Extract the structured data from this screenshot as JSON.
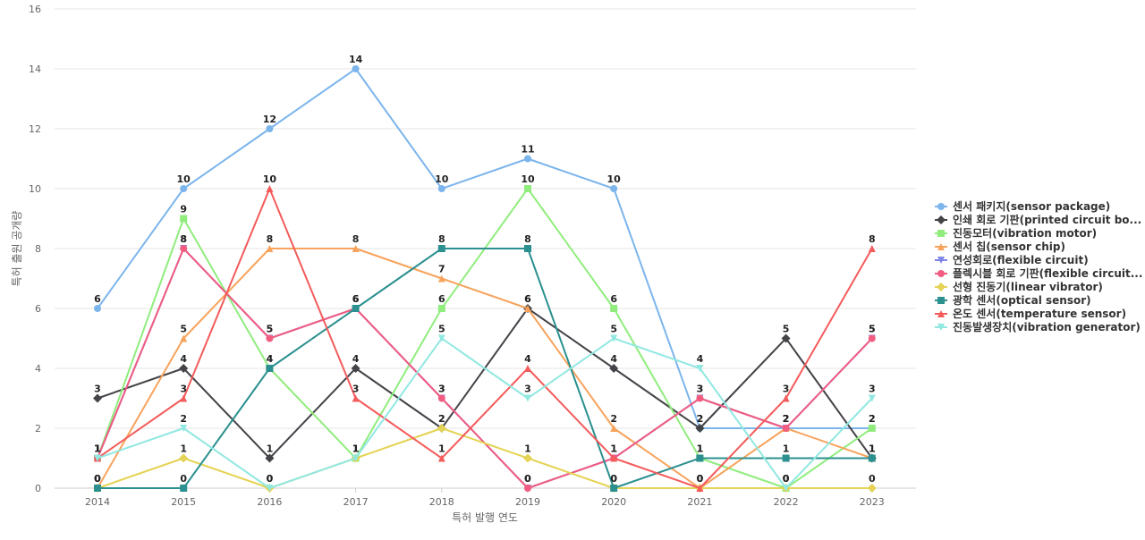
{
  "chart_data": {
    "type": "line",
    "title": "",
    "xlabel": "특허 발행 연도",
    "ylabel": "특허 출원 공개량",
    "ylim": [
      0,
      16
    ],
    "yticks": [
      0,
      2,
      4,
      6,
      8,
      10,
      12,
      14,
      16
    ],
    "grid": true,
    "legend_position": "right",
    "x": [
      2014,
      2015,
      2016,
      2017,
      2018,
      2019,
      2020,
      2021,
      2022,
      2023
    ],
    "series": [
      {
        "name": "센서 패키지(sensor package)",
        "color": "#7cb5ec",
        "marker": "circle",
        "values": [
          6,
          10,
          12,
          14,
          10,
          11,
          10,
          2,
          2,
          2
        ]
      },
      {
        "name": "인쇄 회로 기판(printed circuit bo...",
        "color": "#434348",
        "marker": "diamond",
        "values": [
          3,
          4,
          1,
          4,
          2,
          6,
          4,
          2,
          5,
          1
        ]
      },
      {
        "name": "진동모터(vibration motor)",
        "color": "#90ed7d",
        "marker": "square",
        "values": [
          1,
          9,
          4,
          1,
          6,
          10,
          6,
          1,
          0,
          2
        ]
      },
      {
        "name": "센서 칩(sensor chip)",
        "color": "#f7a35c",
        "marker": "triangle",
        "values": [
          0,
          5,
          8,
          8,
          7,
          6,
          2,
          0,
          2,
          1
        ]
      },
      {
        "name": "연성회로(flexible circuit)",
        "color": "#8085e9",
        "marker": "triangle-down",
        "values": [
          1,
          8,
          5,
          6,
          3,
          0,
          1,
          3,
          2,
          5
        ]
      },
      {
        "name": "플렉시블 회로 기판(flexible circuit...",
        "color": "#f15c80",
        "marker": "circle",
        "values": [
          1,
          8,
          5,
          6,
          3,
          0,
          1,
          3,
          2,
          5
        ]
      },
      {
        "name": "선형 진동기(linear vibrator)",
        "color": "#e4d354",
        "marker": "diamond",
        "values": [
          0,
          1,
          0,
          1,
          2,
          1,
          0,
          0,
          0,
          0
        ]
      },
      {
        "name": "광학 센서(optical sensor)",
        "color": "#2b908f",
        "marker": "square",
        "values": [
          0,
          0,
          4,
          6,
          8,
          8,
          0,
          1,
          1,
          1
        ]
      },
      {
        "name": "온도 센서(temperature sensor)",
        "color": "#f45b5b",
        "marker": "triangle",
        "values": [
          1,
          3,
          10,
          3,
          1,
          4,
          1,
          0,
          3,
          8
        ]
      },
      {
        "name": "진동발생장치(vibration generator)",
        "color": "#91e8e1",
        "marker": "triangle-down",
        "values": [
          1,
          2,
          0,
          1,
          5,
          3,
          5,
          4,
          0,
          3
        ]
      }
    ]
  }
}
